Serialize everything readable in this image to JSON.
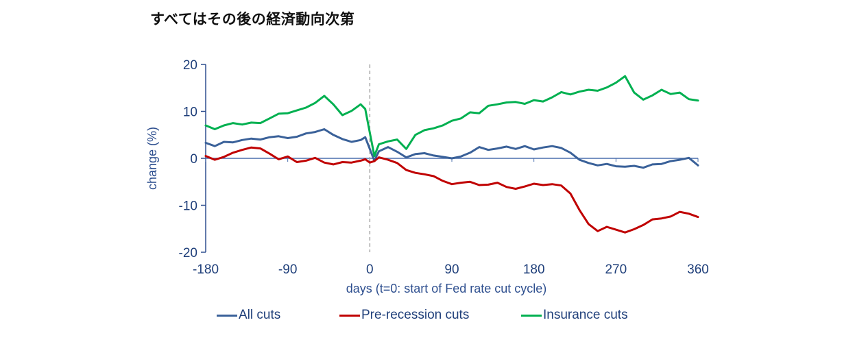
{
  "title": "すべてはその後の経済動向次第",
  "chart_data": {
    "type": "line",
    "title": "すべてはその後の経済動向次第",
    "xlabel": "days (t=0: start of Fed rate cut cycle)",
    "ylabel": "change (%)",
    "xlim": [
      -180,
      360
    ],
    "ylim": [
      -20,
      20
    ],
    "xticks": [
      -180,
      -90,
      0,
      90,
      180,
      270,
      360
    ],
    "yticks": [
      20,
      10,
      0,
      -10,
      -20
    ],
    "xtick_labels": [
      "-180",
      "-90",
      "0",
      "90",
      "180",
      "270",
      "360"
    ],
    "ytick_labels": [
      "20",
      "10",
      "0",
      "-10",
      "-20"
    ],
    "vertical_reference_x": 0,
    "horizontal_reference_y": 0,
    "legend_position": "bottom",
    "x": [
      -180,
      -170,
      -160,
      -150,
      -140,
      -130,
      -120,
      -110,
      -100,
      -90,
      -80,
      -70,
      -60,
      -50,
      -40,
      -30,
      -20,
      -10,
      -5,
      0,
      5,
      10,
      20,
      30,
      40,
      50,
      60,
      70,
      80,
      90,
      100,
      110,
      120,
      130,
      140,
      150,
      160,
      170,
      180,
      190,
      200,
      210,
      220,
      230,
      240,
      250,
      260,
      270,
      280,
      290,
      300,
      310,
      320,
      330,
      340,
      350,
      360
    ],
    "series": [
      {
        "name": "All cuts",
        "color": "#3a6199",
        "values": [
          3.3,
          2.6,
          3.5,
          3.4,
          3.9,
          4.2,
          4.0,
          4.5,
          4.7,
          4.3,
          4.6,
          5.3,
          5.6,
          6.2,
          5.0,
          4.1,
          3.5,
          3.9,
          4.5,
          2.0,
          -0.5,
          1.5,
          2.4,
          1.4,
          0.2,
          0.9,
          1.1,
          0.6,
          0.3,
          0.0,
          0.4,
          1.2,
          2.4,
          1.8,
          2.1,
          2.5,
          2.0,
          2.6,
          1.9,
          2.3,
          2.6,
          2.2,
          1.2,
          -0.3,
          -1.0,
          -1.5,
          -1.2,
          -1.7,
          -1.8,
          -1.6,
          -2.0,
          -1.3,
          -1.2,
          -0.6,
          -0.3,
          0.1,
          -1.5
        ]
      },
      {
        "name": "Pre-recession cuts",
        "color": "#c00000",
        "values": [
          0.5,
          -0.3,
          0.3,
          1.2,
          1.8,
          2.3,
          2.1,
          1.0,
          -0.2,
          0.4,
          -0.8,
          -0.5,
          0.1,
          -0.9,
          -1.3,
          -0.8,
          -0.9,
          -0.5,
          -0.2,
          -0.9,
          -0.6,
          0.2,
          -0.3,
          -1.0,
          -2.5,
          -3.1,
          -3.4,
          -3.8,
          -4.8,
          -5.5,
          -5.2,
          -5.0,
          -5.7,
          -5.6,
          -5.2,
          -6.1,
          -6.5,
          -6.0,
          -5.4,
          -5.7,
          -5.5,
          -5.8,
          -7.5,
          -11.0,
          -14.0,
          -15.5,
          -14.6,
          -15.2,
          -15.8,
          -15.1,
          -14.2,
          -13.0,
          -12.8,
          -12.4,
          -11.4,
          -11.8,
          -12.5
        ]
      },
      {
        "name": "Insurance cuts",
        "color": "#00b050",
        "values": [
          7.0,
          6.2,
          7.0,
          7.5,
          7.2,
          7.6,
          7.5,
          8.5,
          9.5,
          9.6,
          10.2,
          10.8,
          11.8,
          13.3,
          11.5,
          9.2,
          10.1,
          11.5,
          10.5,
          5.5,
          0.5,
          3.0,
          3.6,
          4.0,
          2.0,
          5.0,
          6.0,
          6.4,
          7.0,
          8.0,
          8.5,
          9.8,
          9.6,
          11.2,
          11.5,
          11.9,
          12.0,
          11.6,
          12.4,
          12.1,
          13.0,
          14.1,
          13.6,
          14.2,
          14.6,
          14.4,
          15.1,
          16.1,
          17.5,
          14.0,
          12.5,
          13.4,
          14.6,
          13.7,
          14.0,
          12.6,
          12.3
        ]
      }
    ]
  },
  "legend": [
    {
      "label": "All cuts",
      "color": "#3a6199"
    },
    {
      "label": "Pre-recession cuts",
      "color": "#c00000"
    },
    {
      "label": "Insurance cuts",
      "color": "#00b050"
    }
  ]
}
